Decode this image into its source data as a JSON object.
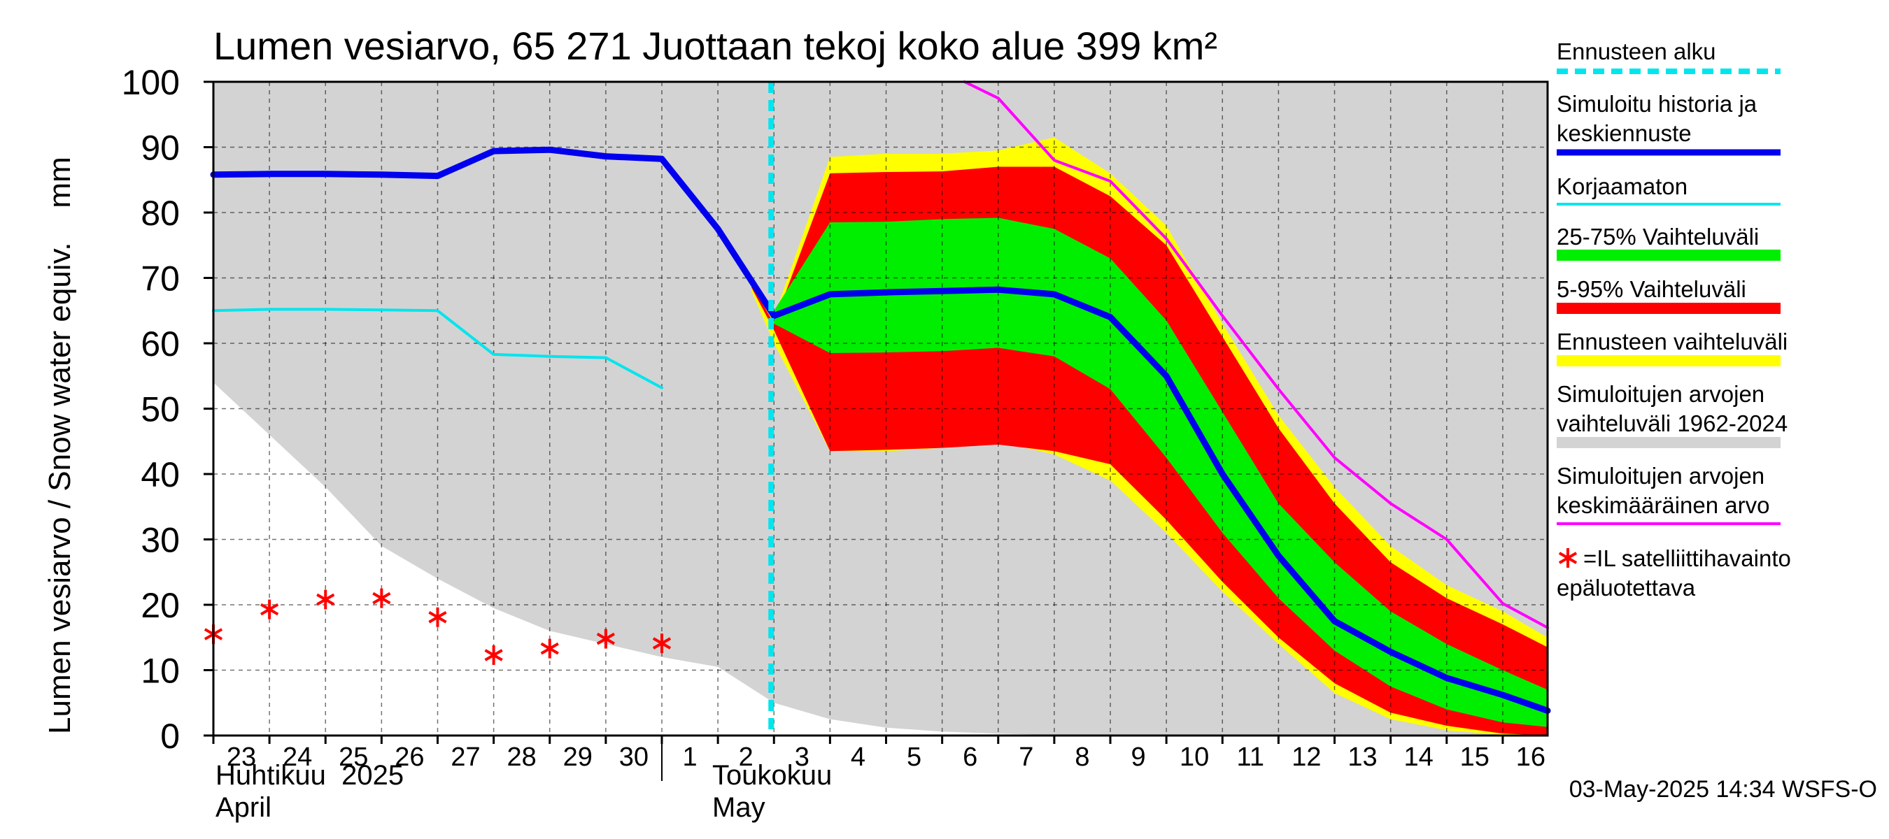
{
  "chart_data": {
    "type": "area",
    "title": "Lumen vesiarvo, 65 271 Juottaan tekoj koko alue 399 km²",
    "ylabel": "Lumen vesiarvo / Snow water equiv.    mm",
    "ylim": [
      0,
      100
    ],
    "yticks": [
      0,
      10,
      20,
      30,
      40,
      50,
      60,
      70,
      80,
      90,
      100
    ],
    "xlim": [
      23,
      46.8
    ],
    "x_ticks": [
      23,
      24,
      25,
      26,
      27,
      28,
      29,
      30,
      31,
      32,
      33,
      34,
      35,
      36,
      37,
      38,
      39,
      40,
      41,
      42,
      43,
      44,
      45,
      46
    ],
    "x_tick_labels": [
      "23",
      "24",
      "25",
      "26",
      "27",
      "28",
      "29",
      "30",
      "1",
      "2",
      "3",
      "4",
      "5",
      "6",
      "7",
      "8",
      "9",
      "10",
      "11",
      "12",
      "13",
      "14",
      "15",
      "16"
    ],
    "month_labels": {
      "april_fi": "Huhtikuu  2025",
      "april_en": "April",
      "may_fi": "Toukokuu",
      "may_en": "May"
    },
    "forecast_start_x": 32.95,
    "timestamp": "03-May-2025 14:34 WSFS-O",
    "series": {
      "historical_range": {
        "name": "Simuloitujen arvojen vaihteluväli 1962-2024",
        "color": "#d3d3d3",
        "upper": [
          [
            23,
            100
          ],
          [
            46.8,
            100
          ]
        ],
        "lower": [
          [
            23,
            54
          ],
          [
            24,
            46
          ],
          [
            25,
            38
          ],
          [
            26,
            29
          ],
          [
            27,
            24
          ],
          [
            28,
            19.5
          ],
          [
            29,
            16
          ],
          [
            30,
            14
          ],
          [
            31,
            12
          ],
          [
            32,
            10.5
          ],
          [
            33,
            5
          ],
          [
            34,
            2.5
          ],
          [
            35,
            1.2
          ],
          [
            36,
            0.6
          ],
          [
            37,
            0.3
          ],
          [
            38,
            0.1
          ],
          [
            39,
            0
          ],
          [
            46.8,
            0
          ]
        ]
      },
      "forecast_range": {
        "name": "Ennusteen vaihteluväli",
        "color": "#ffff00",
        "upper": [
          [
            32.6,
            70
          ],
          [
            33,
            64
          ],
          [
            34,
            88.5
          ],
          [
            35,
            89
          ],
          [
            36,
            89
          ],
          [
            37,
            89.5
          ],
          [
            38,
            91.5
          ],
          [
            39,
            86
          ],
          [
            40,
            78
          ],
          [
            41,
            63
          ],
          [
            42,
            49
          ],
          [
            43,
            38
          ],
          [
            44,
            29
          ],
          [
            45,
            23
          ],
          [
            46,
            19
          ],
          [
            46.8,
            15
          ]
        ],
        "lower": [
          [
            32.6,
            68
          ],
          [
            33,
            60
          ],
          [
            34,
            43.5
          ],
          [
            35,
            43.5
          ],
          [
            36,
            44
          ],
          [
            37,
            45
          ],
          [
            38,
            43
          ],
          [
            39,
            39
          ],
          [
            40,
            31
          ],
          [
            41,
            22
          ],
          [
            42,
            14
          ],
          [
            43,
            6.5
          ],
          [
            44,
            2.5
          ],
          [
            45,
            0.8
          ],
          [
            46,
            0.1
          ],
          [
            46.8,
            0
          ]
        ]
      },
      "p5_95": {
        "name": "5-95% Vaihteluväli",
        "color": "#ff0000",
        "upper": [
          [
            32.6,
            69
          ],
          [
            33,
            63
          ],
          [
            34,
            86
          ],
          [
            35,
            86.2
          ],
          [
            36,
            86.3
          ],
          [
            37,
            87
          ],
          [
            38,
            87
          ],
          [
            39,
            82.5
          ],
          [
            40,
            75
          ],
          [
            41,
            61
          ],
          [
            42,
            47
          ],
          [
            43,
            35.5
          ],
          [
            44,
            26.5
          ],
          [
            45,
            21
          ],
          [
            46,
            17
          ],
          [
            46.8,
            13.5
          ]
        ],
        "lower": [
          [
            32.6,
            68.5
          ],
          [
            33,
            62
          ],
          [
            34,
            43.5
          ],
          [
            35,
            43.7
          ],
          [
            36,
            44
          ],
          [
            37,
            44.5
          ],
          [
            38,
            43.5
          ],
          [
            39,
            41.5
          ],
          [
            40,
            33
          ],
          [
            41,
            23.5
          ],
          [
            42,
            15
          ],
          [
            43,
            8
          ],
          [
            44,
            3.5
          ],
          [
            45,
            1.5
          ],
          [
            46,
            0.3
          ],
          [
            46.8,
            0
          ]
        ]
      },
      "p25_75": {
        "name": "25-75% Vaihteluväli",
        "color": "#00ee00",
        "upper": [
          [
            33,
            65
          ],
          [
            34,
            78.5
          ],
          [
            35,
            78.6
          ],
          [
            36,
            79
          ],
          [
            37,
            79.2
          ],
          [
            38,
            77.5
          ],
          [
            39,
            73
          ],
          [
            40,
            63.5
          ],
          [
            41,
            49.5
          ],
          [
            42,
            35.5
          ],
          [
            43,
            26.5
          ],
          [
            44,
            19
          ],
          [
            45,
            14
          ],
          [
            46,
            10
          ],
          [
            46.8,
            7
          ]
        ],
        "lower": [
          [
            33,
            63
          ],
          [
            34,
            58.5
          ],
          [
            35,
            58.6
          ],
          [
            36,
            58.8
          ],
          [
            37,
            59.3
          ],
          [
            38,
            58
          ],
          [
            39,
            53
          ],
          [
            40,
            42.5
          ],
          [
            41,
            31
          ],
          [
            42,
            21
          ],
          [
            43,
            13
          ],
          [
            44,
            7.5
          ],
          [
            45,
            4
          ],
          [
            46,
            2
          ],
          [
            46.8,
            1.3
          ]
        ]
      },
      "uncorrected": {
        "name": "Korjaamaton",
        "color": "#00e5ee",
        "points": [
          [
            23,
            65
          ],
          [
            24,
            65.2
          ],
          [
            25,
            65.2
          ],
          [
            26,
            65.1
          ],
          [
            27,
            65
          ],
          [
            28,
            58.3
          ],
          [
            29,
            58
          ],
          [
            30,
            57.8
          ],
          [
            31,
            53.2
          ]
        ]
      },
      "sim_mean": {
        "name": "Simuloitujen arvojen keskimääräinen arvo",
        "color": "#ff00ff",
        "points": [
          [
            36.4,
            100
          ],
          [
            37,
            97.5
          ],
          [
            38,
            88
          ],
          [
            39,
            84.8
          ],
          [
            40,
            76
          ],
          [
            41,
            64.2
          ],
          [
            42,
            53
          ],
          [
            43,
            42.5
          ],
          [
            44,
            35.5
          ],
          [
            45,
            30
          ],
          [
            46,
            20.2
          ],
          [
            46.8,
            16.5
          ]
        ]
      },
      "sim_history_forecast": {
        "name": "Simuloitu historia ja keskiennuste",
        "color": "#0000ee",
        "points": [
          [
            23,
            85.8
          ],
          [
            24,
            85.9
          ],
          [
            25,
            85.9
          ],
          [
            26,
            85.8
          ],
          [
            27,
            85.6
          ],
          [
            28,
            89.4
          ],
          [
            29,
            89.6
          ],
          [
            30,
            88.6
          ],
          [
            31,
            88.2
          ],
          [
            32,
            77.5
          ],
          [
            33,
            64.2
          ],
          [
            34,
            67.5
          ],
          [
            35,
            67.8
          ],
          [
            36,
            68
          ],
          [
            37,
            68.2
          ],
          [
            38,
            67.5
          ],
          [
            39,
            64
          ],
          [
            40,
            55
          ],
          [
            41,
            40
          ],
          [
            42,
            27.5
          ],
          [
            43,
            17.5
          ],
          [
            44,
            12.8
          ],
          [
            45,
            8.8
          ],
          [
            46,
            6.2
          ],
          [
            46.8,
            3.8
          ]
        ]
      },
      "satellite": {
        "name": "=IL satelliittihavainto epäluotettava",
        "color": "#ff0000",
        "points": [
          [
            23,
            15.5
          ],
          [
            24,
            19.3
          ],
          [
            25,
            20.8
          ],
          [
            26,
            21
          ],
          [
            27,
            18.1
          ],
          [
            28,
            12.3
          ],
          [
            29,
            13.3
          ],
          [
            30,
            14.8
          ],
          [
            31,
            14.1
          ]
        ]
      }
    },
    "legend": {
      "position": "right",
      "entries": [
        {
          "label": "Ennusteen alku",
          "color": "#00e5ee",
          "style": "dashed"
        },
        {
          "label": "Simuloitu historia ja",
          "label2": "keskiennuste",
          "color": "#0000ee",
          "style": "thick"
        },
        {
          "label": "Korjaamaton",
          "color": "#00e5ee",
          "style": "line"
        },
        {
          "label": "25-75% Vaihteluväli",
          "color": "#00ee00",
          "style": "band"
        },
        {
          "label": "5-95% Vaihteluväli",
          "color": "#ff0000",
          "style": "band"
        },
        {
          "label": "Ennusteen vaihteluväli",
          "color": "#ffff00",
          "style": "band"
        },
        {
          "label": "Simuloitujen arvojen",
          "label2": "vaihteluväli 1962-2024",
          "color": "#d3d3d3",
          "style": "band"
        },
        {
          "label": "Simuloitujen arvojen",
          "label2": "keskimääräinen arvo",
          "color": "#ff00ff",
          "style": "line"
        },
        {
          "label": "=IL satelliittihavainto",
          "label2": "epäluotettava",
          "color": "#ff0000",
          "style": "marker"
        }
      ]
    }
  }
}
